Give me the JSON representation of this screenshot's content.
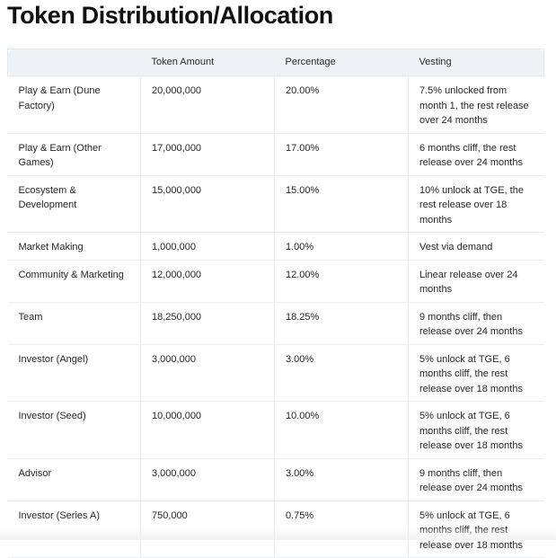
{
  "page": {
    "title": "Token Distribution/Allocation"
  },
  "table": {
    "headers": [
      "",
      "Token Amount",
      "Percentage",
      "Vesting"
    ],
    "rows": [
      {
        "category": "Play & Earn (Dune Factory)",
        "amount": "20,000,000",
        "percentage": "20.00%",
        "vesting": "7.5% unlocked from month 1, the rest release over 24 months"
      },
      {
        "category": "Play & Earn (Other Games)",
        "amount": "17,000,000",
        "percentage": "17.00%",
        "vesting": "6 months cliff, the rest release over 24 months"
      },
      {
        "category": "Ecosystem & Development",
        "amount": "15,000,000",
        "percentage": "15.00%",
        "vesting": "10% unlock at TGE, the rest release over 18 months"
      },
      {
        "category": "Market Making",
        "amount": "1,000,000",
        "percentage": "1.00%",
        "vesting": "Vest via demand"
      },
      {
        "category": "Community & Marketing",
        "amount": "12,000,000",
        "percentage": "12.00%",
        "vesting": "Linear release over 24 months"
      },
      {
        "category": "Team",
        "amount": "18,250,000",
        "percentage": "18.25%",
        "vesting": "9 months cliff, then release over 24 months"
      },
      {
        "category": "Investor (Angel)",
        "amount": "3,000,000",
        "percentage": "3.00%",
        "vesting": "5% unlock at TGE, 6 months cliff, the rest release over 18 months"
      },
      {
        "category": "Investor (Seed)",
        "amount": "10,000,000",
        "percentage": "10.00%",
        "vesting": "5% unlock at TGE, 6 months cliff, the rest release over 18 months"
      },
      {
        "category": "Advisor",
        "amount": "3,000,000",
        "percentage": "3.00%",
        "vesting": "9 months cliff, then release over 24 months"
      },
      {
        "category": "Investor (Series A)",
        "amount": "750,000",
        "percentage": "0.75%",
        "vesting": "5% unlock at TGE, 6 months cliff, the rest release over 18 months"
      }
    ]
  }
}
